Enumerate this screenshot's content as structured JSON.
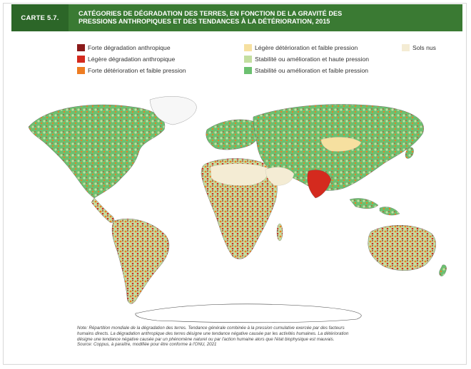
{
  "header": {
    "label": "CARTE 5.7.",
    "title_line1": "CATÉGORIES DE DÉGRADATION DES TERRES, EN FONCTION DE LA GRAVITÉ DES",
    "title_line2": "PRESSIONS ANTHROPIQUES ET DES TENDANCES À LA DÉTÉRIORATION, 2015"
  },
  "legend": [
    {
      "label": "Forte dégradation anthropique",
      "color": "#8b1a1a"
    },
    {
      "label": "Légère dégradation anthropique",
      "color": "#d42a1e"
    },
    {
      "label": "Forte détérioration et faible pression",
      "color": "#ee7d22"
    },
    {
      "label": "Légère détérioration et faible pression",
      "color": "#f6e0a0"
    },
    {
      "label": "Stabilité ou amélioration et haute pression",
      "color": "#c3dea0"
    },
    {
      "label": "Stabilité ou amélioration et faible pression",
      "color": "#6cc070"
    },
    {
      "label": "Sols nus",
      "color": "#f4ecd4"
    }
  ],
  "note": {
    "line1": "Note: Répartition mondiale de la dégradation des terres. Tendance générale combinée à la pression cumulative exercée par des facteurs",
    "line2": "humains directs. La dégradation anthropique des terres désigne une tendance négative causée par les activités humaines. La détérioration",
    "line3": "désigne une tendance négative causée par un phénomène naturel ou par l'action humaine alors que l'état biophysique est mauvais.",
    "source": "Source: Coppus, à paraître, modifiée pour être conforme à l'ONU, 2021"
  }
}
